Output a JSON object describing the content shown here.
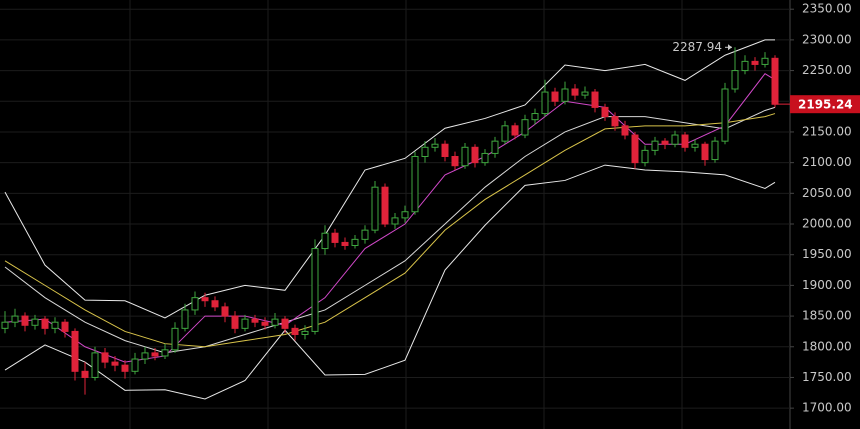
{
  "chart_data": {
    "type": "candlestick",
    "ohlc": [
      [
        1830,
        1858,
        1822,
        1840
      ],
      [
        1840,
        1862,
        1832,
        1850
      ],
      [
        1850,
        1856,
        1825,
        1835
      ],
      [
        1835,
        1852,
        1828,
        1845
      ],
      [
        1845,
        1850,
        1820,
        1830
      ],
      [
        1830,
        1848,
        1822,
        1840
      ],
      [
        1840,
        1845,
        1815,
        1825
      ],
      [
        1825,
        1830,
        1745,
        1760
      ],
      [
        1760,
        1775,
        1722,
        1750
      ],
      [
        1750,
        1800,
        1745,
        1790
      ],
      [
        1790,
        1798,
        1765,
        1775
      ],
      [
        1775,
        1785,
        1760,
        1770
      ],
      [
        1770,
        1778,
        1748,
        1760
      ],
      [
        1760,
        1790,
        1755,
        1780
      ],
      [
        1780,
        1800,
        1772,
        1790
      ],
      [
        1790,
        1798,
        1778,
        1785
      ],
      [
        1785,
        1805,
        1780,
        1795
      ],
      [
        1795,
        1840,
        1790,
        1830
      ],
      [
        1830,
        1870,
        1825,
        1860
      ],
      [
        1860,
        1890,
        1852,
        1880
      ],
      [
        1880,
        1888,
        1865,
        1875
      ],
      [
        1875,
        1882,
        1858,
        1865
      ],
      [
        1865,
        1872,
        1840,
        1850
      ],
      [
        1850,
        1858,
        1822,
        1830
      ],
      [
        1830,
        1852,
        1825,
        1845
      ],
      [
        1845,
        1852,
        1832,
        1840
      ],
      [
        1840,
        1848,
        1828,
        1835
      ],
      [
        1835,
        1855,
        1830,
        1845
      ],
      [
        1845,
        1850,
        1822,
        1830
      ],
      [
        1830,
        1836,
        1810,
        1820
      ],
      [
        1820,
        1835,
        1812,
        1825
      ],
      [
        1825,
        1975,
        1820,
        1960
      ],
      [
        1960,
        1998,
        1950,
        1985
      ],
      [
        1985,
        1992,
        1962,
        1970
      ],
      [
        1970,
        1978,
        1958,
        1965
      ],
      [
        1965,
        1982,
        1960,
        1975
      ],
      [
        1975,
        1998,
        1968,
        1990
      ],
      [
        1990,
        2070,
        1985,
        2060
      ],
      [
        2060,
        2066,
        1995,
        2000
      ],
      [
        2000,
        2018,
        1992,
        2010
      ],
      [
        2010,
        2030,
        2002,
        2020
      ],
      [
        2020,
        2118,
        2015,
        2110
      ],
      [
        2110,
        2135,
        2100,
        2125
      ],
      [
        2125,
        2140,
        2118,
        2130
      ],
      [
        2130,
        2136,
        2102,
        2110
      ],
      [
        2110,
        2118,
        2088,
        2095
      ],
      [
        2095,
        2132,
        2090,
        2125
      ],
      [
        2125,
        2130,
        2092,
        2100
      ],
      [
        2100,
        2122,
        2095,
        2115
      ],
      [
        2115,
        2142,
        2108,
        2135
      ],
      [
        2135,
        2168,
        2130,
        2160
      ],
      [
        2160,
        2165,
        2138,
        2145
      ],
      [
        2145,
        2178,
        2140,
        2170
      ],
      [
        2170,
        2188,
        2162,
        2180
      ],
      [
        2180,
        2235,
        2175,
        2215
      ],
      [
        2215,
        2222,
        2192,
        2200
      ],
      [
        2200,
        2232,
        2195,
        2220
      ],
      [
        2220,
        2228,
        2202,
        2210
      ],
      [
        2210,
        2224,
        2204,
        2215
      ],
      [
        2215,
        2220,
        2182,
        2190
      ],
      [
        2190,
        2196,
        2168,
        2175
      ],
      [
        2175,
        2182,
        2152,
        2160
      ],
      [
        2160,
        2168,
        2138,
        2145
      ],
      [
        2145,
        2150,
        2090,
        2100
      ],
      [
        2100,
        2128,
        2094,
        2120
      ],
      [
        2120,
        2142,
        2112,
        2135
      ],
      [
        2135,
        2140,
        2122,
        2130
      ],
      [
        2130,
        2152,
        2125,
        2145
      ],
      [
        2145,
        2150,
        2118,
        2125
      ],
      [
        2125,
        2138,
        2118,
        2130
      ],
      [
        2130,
        2134,
        2095,
        2105
      ],
      [
        2105,
        2142,
        2100,
        2135
      ],
      [
        2135,
        2230,
        2130,
        2220
      ],
      [
        2220,
        2287.94,
        2214,
        2250
      ],
      [
        2250,
        2275,
        2244,
        2265
      ],
      [
        2265,
        2272,
        2250,
        2260
      ],
      [
        2260,
        2280,
        2255,
        2270
      ],
      [
        2270,
        2275,
        2190,
        2195.24
      ]
    ],
    "up_color": "#3fa63f",
    "down_color": "#e0233a",
    "lines": [
      {
        "color": "#e8e8e8",
        "x": [
          0,
          4,
          8,
          12,
          16,
          20,
          24,
          28,
          32,
          36,
          40,
          44,
          48,
          52,
          56,
          60,
          64,
          68,
          72,
          76,
          77
        ],
        "values": [
          2052,
          1933,
          1876,
          1875,
          1847,
          1884,
          1900,
          1892,
          1982,
          2088,
          2107,
          2156,
          2172,
          2194,
          2259,
          2250,
          2260,
          2234,
          2275,
          2300,
          2300
        ]
      },
      {
        "color": "#e8e8e8",
        "x": [
          0,
          4,
          8,
          12,
          16,
          20,
          24,
          28,
          32,
          36,
          40,
          44,
          48,
          52,
          56,
          60,
          64,
          68,
          72,
          76,
          77
        ],
        "values": [
          1762,
          1803,
          1775,
          1729,
          1730,
          1715,
          1745,
          1827,
          1754,
          1755,
          1778,
          1925,
          1998,
          2063,
          2071,
          2096,
          2088,
          2085,
          2080,
          2058,
          2068
        ]
      },
      {
        "color": "#d8d8d8",
        "x": [
          0,
          4,
          8,
          12,
          16,
          20,
          24,
          28,
          32,
          36,
          40,
          44,
          48,
          52,
          56,
          60,
          64,
          68,
          72,
          76,
          77
        ],
        "values": [
          1930,
          1880,
          1840,
          1810,
          1790,
          1800,
          1820,
          1840,
          1860,
          1900,
          1940,
          2000,
          2060,
          2110,
          2150,
          2175,
          2175,
          2165,
          2155,
          2185,
          2190
        ]
      },
      {
        "color": "#d8c34a",
        "x": [
          0,
          4,
          8,
          12,
          16,
          20,
          24,
          28,
          32,
          36,
          40,
          44,
          48,
          52,
          56,
          60,
          64,
          68,
          72,
          76,
          77
        ],
        "values": [
          1940,
          1900,
          1860,
          1825,
          1805,
          1800,
          1810,
          1820,
          1840,
          1880,
          1920,
          1990,
          2040,
          2080,
          2120,
          2155,
          2160,
          2160,
          2165,
          2175,
          2180
        ]
      },
      {
        "color": "#d048c8",
        "x": [
          0,
          4,
          8,
          12,
          16,
          20,
          24,
          28,
          32,
          36,
          40,
          44,
          48,
          52,
          56,
          60,
          64,
          68,
          72,
          76,
          77
        ],
        "values": [
          1840,
          1845,
          1800,
          1775,
          1785,
          1850,
          1850,
          1835,
          1880,
          1960,
          2000,
          2080,
          2110,
          2150,
          2200,
          2190,
          2130,
          2130,
          2160,
          2245,
          2235
        ]
      }
    ],
    "ylim": [
      1666,
      2365
    ],
    "yticks": [
      {
        "value": 1700,
        "label": "1700.00"
      },
      {
        "value": 1750,
        "label": "1750.00"
      },
      {
        "value": 1800,
        "label": "1800.00"
      },
      {
        "value": 1850,
        "label": "1850.00"
      },
      {
        "value": 1900,
        "label": "1900.00"
      },
      {
        "value": 1950,
        "label": "1950.00"
      },
      {
        "value": 2000,
        "label": "2000.00"
      },
      {
        "value": 2050,
        "label": "2050.00"
      },
      {
        "value": 2100,
        "label": "2100.00"
      },
      {
        "value": 2150,
        "label": "2150.00"
      },
      {
        "value": 2200,
        "label": "2200.00"
      },
      {
        "value": 2250,
        "label": "2250.00"
      },
      {
        "value": 2300,
        "label": "2300.00"
      },
      {
        "value": 2350,
        "label": "2350.00"
      }
    ],
    "grid": true
  }
}
